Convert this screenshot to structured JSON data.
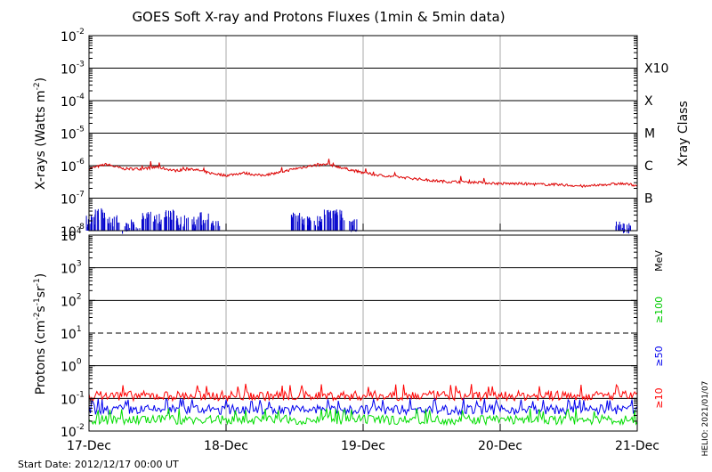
{
  "chart_data": [
    {
      "type": "line",
      "panel": "xray",
      "title": "GOES Soft X-ray and Protons Fluxes   (1min & 5min data)",
      "ylabel": "X-rays (Watts m⁻²)",
      "ylabel_parts": {
        "main": "X-rays (Watts m",
        "sup": "-2",
        "tail": ")"
      },
      "yscale": "log",
      "ylim": [
        1e-08,
        0.01
      ],
      "y_ticks": [
        {
          "value": 1e-08,
          "base": "10",
          "exp": "-8"
        },
        {
          "value": 1e-07,
          "base": "10",
          "exp": "-7"
        },
        {
          "value": 1e-06,
          "base": "10",
          "exp": "-6"
        },
        {
          "value": 1e-05,
          "base": "10",
          "exp": "-5"
        },
        {
          "value": 0.0001,
          "base": "10",
          "exp": "-4"
        },
        {
          "value": 0.001,
          "base": "10",
          "exp": "-3"
        },
        {
          "value": 0.01,
          "base": "10",
          "exp": "-2"
        }
      ],
      "right_axis_label": "Xray Class",
      "classes": [
        {
          "label": "B",
          "value": 1e-07
        },
        {
          "label": "C",
          "value": 1e-06
        },
        {
          "label": "M",
          "value": 1e-05
        },
        {
          "label": "X",
          "value": 0.0001
        },
        {
          "label": "X10",
          "value": 0.001
        }
      ],
      "gridlines": [
        1e-07,
        1e-06,
        1e-05,
        0.0001,
        0.001
      ],
      "xlim": [
        "2012-12-17 00:00",
        "2012-12-21 00:00"
      ],
      "series": [
        {
          "color": "#dd0000",
          "x": [
            "2012-12-17 00:00",
            "2012-12-17 03:00",
            "2012-12-17 06:00",
            "2012-12-17 09:00",
            "2012-12-17 12:00",
            "2012-12-17 15:00",
            "2012-12-17 18:00",
            "2012-12-17 21:00",
            "2012-12-18 00:00",
            "2012-12-18 03:00",
            "2012-12-18 06:00",
            "2012-12-18 09:00",
            "2012-12-18 12:00",
            "2012-12-18 15:00",
            "2012-12-18 18:00",
            "2012-12-18 21:00",
            "2012-12-19 00:00",
            "2012-12-19 03:00",
            "2012-12-19 06:00",
            "2012-12-19 09:00",
            "2012-12-19 12:00",
            "2012-12-19 15:00",
            "2012-12-19 18:00",
            "2012-12-19 21:00",
            "2012-12-20 00:00",
            "2012-12-20 03:00",
            "2012-12-20 06:00",
            "2012-12-20 09:00",
            "2012-12-20 12:00",
            "2012-12-20 15:00",
            "2012-12-20 18:00",
            "2012-12-20 21:00",
            "2012-12-21 00:00"
          ],
          "y": [
            8e-07,
            1.1e-06,
            8e-07,
            8e-07,
            9e-07,
            7e-07,
            8e-07,
            6e-07,
            5e-07,
            6e-07,
            5e-07,
            6e-07,
            8e-07,
            1e-06,
            1.1e-06,
            8e-07,
            6e-07,
            5e-07,
            4.5e-07,
            4e-07,
            3.5e-07,
            3.2e-07,
            3.2e-07,
            3e-07,
            2.8e-07,
            2.8e-07,
            2.7e-07,
            2.6e-07,
            2.5e-07,
            2.3e-07,
            2.6e-07,
            2.8e-07,
            2.5e-07
          ]
        },
        {
          "color": "#0000cc",
          "x": [
            "2012-12-17 00:00",
            "2012-12-17 02:00",
            "2012-12-17 04:00",
            "2012-12-17 06:00",
            "2012-12-17 08:00",
            "2012-12-17 10:00",
            "2012-12-17 12:00",
            "2012-12-17 14:00",
            "2012-12-17 16:00",
            "2012-12-17 18:00",
            "2012-12-17 20:00",
            "2012-12-17 22:00",
            "2012-12-18 12:00",
            "2012-12-18 14:00",
            "2012-12-18 16:00",
            "2012-12-18 18:00",
            "2012-12-18 20:00",
            "2012-12-18 22:00",
            "2012-12-20 21:00",
            "2012-12-20 22:00"
          ],
          "y": [
            2e-08,
            3.5e-08,
            2e-08,
            1.2e-08,
            1.5e-08,
            3e-08,
            2.5e-08,
            3e-08,
            2e-08,
            1.8e-08,
            2.5e-08,
            1.5e-08,
            2.5e-08,
            2e-08,
            2e-08,
            3e-08,
            3e-08,
            1.5e-08,
            1.3e-08,
            1.2e-08
          ]
        }
      ]
    },
    {
      "type": "line",
      "panel": "protons",
      "ylabel": "Protons (cm⁻²s⁻¹sr⁻¹)",
      "ylabel_parts": {
        "a": "Protons (cm",
        "s1": "-2",
        "b": "s",
        "s2": "-1",
        "c": "sr",
        "s3": "-1",
        "d": ")"
      },
      "yscale": "log",
      "ylim": [
        0.01,
        10000
      ],
      "y_ticks": [
        {
          "value": 0.01,
          "base": "10",
          "exp": "-2"
        },
        {
          "value": 0.1,
          "base": "10",
          "exp": "-1"
        },
        {
          "value": 1,
          "base": "10",
          "exp": "0"
        },
        {
          "value": 10,
          "base": "10",
          "exp": "1"
        },
        {
          "value": 100,
          "base": "10",
          "exp": "2"
        },
        {
          "value": 1000,
          "base": "10",
          "exp": "3"
        },
        {
          "value": 10000,
          "base": "10",
          "exp": "4"
        }
      ],
      "gridlines": [
        0.1,
        1,
        100,
        1000
      ],
      "dashed_line": 10,
      "energy_unit": "MeV",
      "xlim": [
        "2012-12-17 00:00",
        "2012-12-21 00:00"
      ],
      "x_ticks": [
        "17-Dec",
        "18-Dec",
        "19-Dec",
        "20-Dec",
        "21-Dec"
      ],
      "series": [
        {
          "name": "≥10",
          "color": "#ff0000",
          "baseline": 0.12,
          "noise_min": 0.08,
          "noise_max": 0.28
        },
        {
          "name": "≥50",
          "color": "#0000ee",
          "baseline": 0.045,
          "noise_min": 0.028,
          "noise_max": 0.1
        },
        {
          "name": "≥100",
          "color": "#00dd00",
          "baseline": 0.022,
          "noise_min": 0.015,
          "noise_max": 0.05
        }
      ]
    }
  ],
  "footer": {
    "start_date": "Start Date: 2012/12/17 00:00 UT",
    "credit": "HELIO: 2021/01/07"
  }
}
